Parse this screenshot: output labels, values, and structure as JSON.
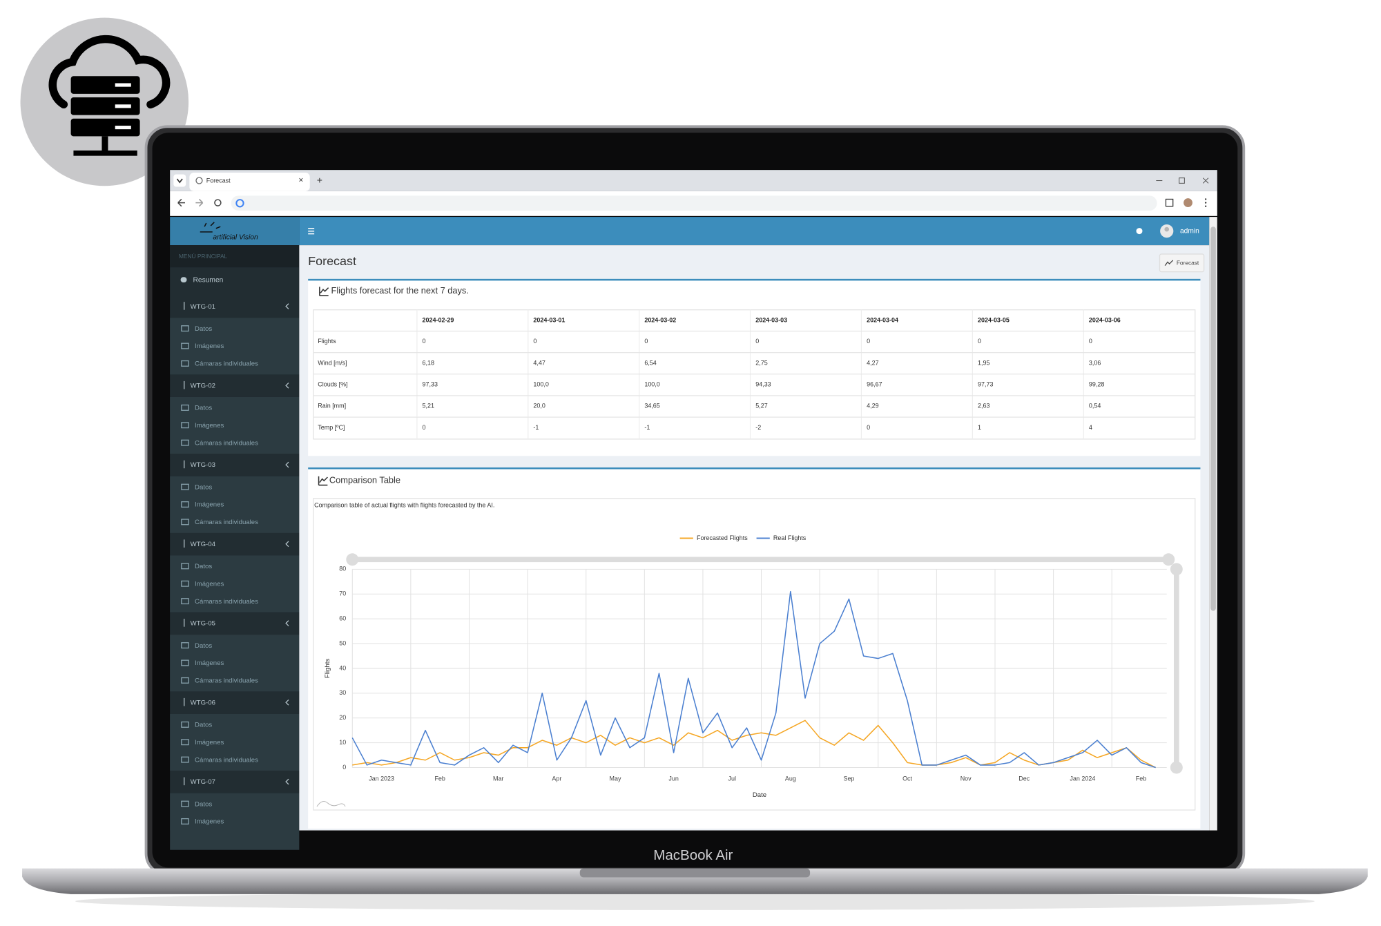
{
  "browser": {
    "tab_title": "Forecast"
  },
  "app": {
    "logo": "artificial Vision",
    "user": "admin",
    "menu_header": "MENÚ PRINCIPAL",
    "summary": "Resumen",
    "turbines": [
      {
        "name": "WTG-01",
        "items": [
          "Datos",
          "Imágenes",
          "Cámaras individuales"
        ]
      },
      {
        "name": "WTG-02",
        "items": [
          "Datos",
          "Imágenes",
          "Cámaras individuales"
        ]
      },
      {
        "name": "WTG-03",
        "items": [
          "Datos",
          "Imágenes",
          "Cámaras individuales"
        ]
      },
      {
        "name": "WTG-04",
        "items": [
          "Datos",
          "Imágenes",
          "Cámaras individuales"
        ]
      },
      {
        "name": "WTG-05",
        "items": [
          "Datos",
          "Imágenes",
          "Cámaras individuales"
        ]
      },
      {
        "name": "WTG-06",
        "items": [
          "Datos",
          "Imágenes",
          "Cámaras individuales"
        ]
      },
      {
        "name": "WTG-07",
        "items": [
          "Datos",
          "Imágenes"
        ]
      }
    ]
  },
  "page": {
    "title": "Forecast",
    "button": "Forecast"
  },
  "forecast_box": {
    "title": "Flights forecast for the next 7 days.",
    "table": {
      "columns": [
        "2024-02-29",
        "2024-03-01",
        "2024-03-02",
        "2024-03-03",
        "2024-03-04",
        "2024-03-05",
        "2024-03-06"
      ],
      "rows": [
        {
          "label": "Flights",
          "values": [
            "0",
            "0",
            "0",
            "0",
            "0",
            "0",
            "0"
          ]
        },
        {
          "label": "Wind [m/s]",
          "values": [
            "6,18",
            "4,47",
            "6,54",
            "2,75",
            "4,27",
            "1,95",
            "3,06"
          ]
        },
        {
          "label": "Clouds [%]",
          "values": [
            "97,33",
            "100,0",
            "100,0",
            "94,33",
            "96,67",
            "97,73",
            "99,28"
          ]
        },
        {
          "label": "Rain [mm]",
          "values": [
            "5,21",
            "20,0",
            "34,65",
            "5,27",
            "4,29",
            "2,63",
            "0,54"
          ]
        },
        {
          "label": "Temp [ºC]",
          "values": [
            "0",
            "-1",
            "-1",
            "-2",
            "0",
            "1",
            "4"
          ]
        }
      ]
    }
  },
  "comparison_box": {
    "title": "Comparison Table",
    "description": "Comparison table of actual flights with flights forecasted by the AI."
  },
  "chart_data": {
    "type": "line",
    "x_label": "Date",
    "y_label": "Flights",
    "grid": true,
    "xlim": [
      0,
      13.94
    ],
    "ylim": [
      0,
      80
    ],
    "xticks": [
      {
        "value": 0,
        "label": "Jan 2023"
      },
      {
        "value": 1,
        "label": "Feb"
      },
      {
        "value": 2,
        "label": "Mar"
      },
      {
        "value": 3,
        "label": "Apr"
      },
      {
        "value": 4,
        "label": "May"
      },
      {
        "value": 5,
        "label": "Jun"
      },
      {
        "value": 6,
        "label": "Jul"
      },
      {
        "value": 7,
        "label": "Aug"
      },
      {
        "value": 8,
        "label": "Sep"
      },
      {
        "value": 9,
        "label": "Oct"
      },
      {
        "value": 10,
        "label": "Nov"
      },
      {
        "value": 11,
        "label": "Dec"
      },
      {
        "value": 12,
        "label": "Jan 2024"
      },
      {
        "value": 13,
        "label": "Feb"
      }
    ],
    "yticks": [
      0,
      10,
      20,
      30,
      40,
      50,
      60,
      70,
      80
    ],
    "x": [
      0,
      0.25,
      0.5,
      0.75,
      1,
      1.25,
      1.5,
      1.75,
      2,
      2.25,
      2.5,
      2.75,
      3,
      3.25,
      3.5,
      3.75,
      4,
      4.25,
      4.5,
      4.75,
      5,
      5.25,
      5.5,
      5.75,
      6,
      6.25,
      6.5,
      6.75,
      7,
      7.25,
      7.5,
      7.75,
      8,
      8.25,
      8.5,
      8.75,
      9,
      9.25,
      9.5,
      9.75,
      10,
      10.25,
      10.5,
      10.75,
      11,
      11.25,
      11.5,
      11.75,
      12,
      12.25,
      12.5,
      12.75,
      13,
      13.25,
      13.5,
      13.75
    ],
    "series": [
      {
        "name": "Forecasted Flights",
        "color": "#f5a623",
        "values": [
          1,
          2,
          1,
          2,
          4,
          3,
          6,
          3,
          4,
          6,
          5,
          8,
          8,
          11,
          9,
          12,
          10,
          13,
          9,
          12,
          10,
          12,
          9,
          14,
          12,
          15,
          11,
          13,
          14,
          13,
          16,
          19,
          12,
          9,
          14,
          11,
          17,
          10,
          2,
          1,
          1,
          2,
          4,
          1,
          2,
          6,
          3,
          1,
          2,
          3,
          7,
          4,
          6,
          8,
          3,
          0
        ]
      },
      {
        "name": "Real Flights",
        "color": "#4a7fd0",
        "values": [
          12,
          1,
          3,
          2,
          1,
          15,
          2,
          1,
          5,
          8,
          2,
          9,
          6,
          30,
          3,
          12,
          27,
          5,
          20,
          8,
          12,
          38,
          6,
          36,
          14,
          22,
          8,
          16,
          3,
          22,
          71,
          28,
          50,
          55,
          68,
          45,
          44,
          46,
          27,
          1,
          1,
          3,
          5,
          1,
          1,
          2,
          6,
          1,
          2,
          4,
          6,
          11,
          5,
          8,
          2,
          0
        ]
      }
    ]
  },
  "device": {
    "label": "MacBook Air"
  }
}
